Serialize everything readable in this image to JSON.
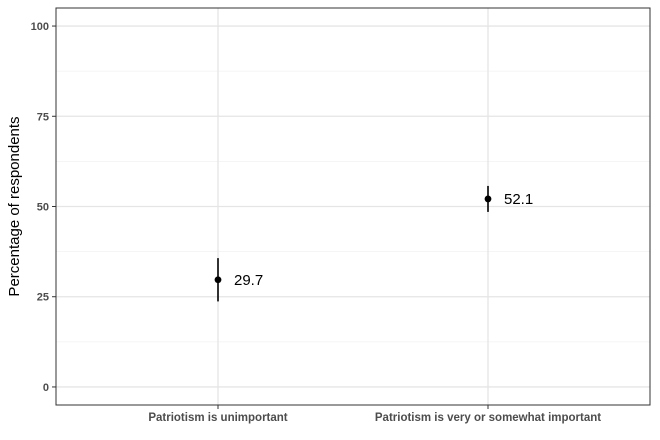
{
  "chart_data": {
    "type": "scatter",
    "title": "",
    "xlabel": "",
    "ylabel": "Percentage of respondents",
    "ylim": [
      0,
      100
    ],
    "yticks": [
      0,
      25,
      50,
      75,
      100
    ],
    "grid": true,
    "categories": [
      "Patriotism is unimportant",
      "Patriotism is very or somewhat important"
    ],
    "points": [
      {
        "category": "Patriotism is unimportant",
        "value": 29.7,
        "lower": 23.7,
        "upper": 35.7,
        "label": "29.7"
      },
      {
        "category": "Patriotism is very or somewhat important",
        "value": 52.1,
        "lower": 48.5,
        "upper": 55.7,
        "label": "52.1"
      }
    ],
    "colors": {
      "point": "#000000",
      "grid_major": "#e5e5e5",
      "grid_minor": "#f2f2f2",
      "panel_border": "#333333"
    }
  }
}
